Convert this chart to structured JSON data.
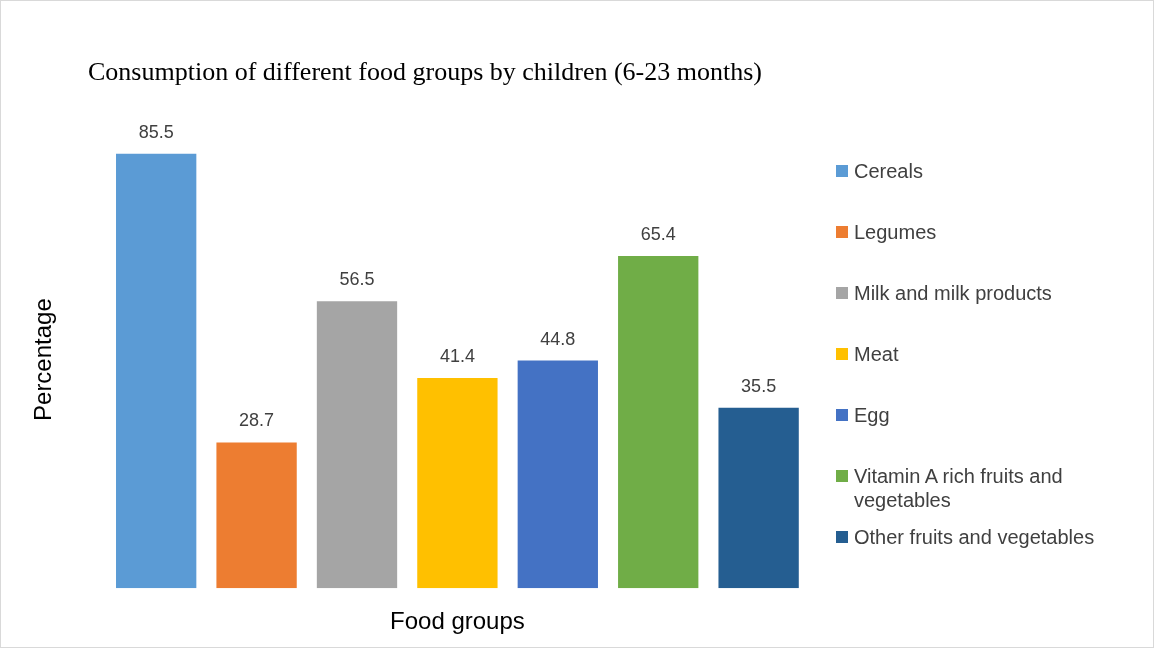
{
  "chart_data": {
    "type": "bar",
    "title": "Consumption of different food groups by children (6-23 months)",
    "xlabel": "Food groups",
    "ylabel": "Percentage",
    "categories": [
      null
    ],
    "series": [
      {
        "name": "Cereals",
        "color": "#5b9bd5",
        "values": [
          85.5
        ]
      },
      {
        "name": "Legumes",
        "color": "#ed7d31",
        "values": [
          28.7
        ]
      },
      {
        "name": "Milk and milk products",
        "color": "#a5a5a5",
        "values": [
          56.5
        ]
      },
      {
        "name": "Meat",
        "color": "#ffc000",
        "values": [
          41.4
        ]
      },
      {
        "name": "Egg",
        "color": "#4472c4",
        "values": [
          44.8
        ]
      },
      {
        "name": "Vitamin A rich fruits and vegetables",
        "color": "#70ad47",
        "values": [
          65.4
        ]
      },
      {
        "name": "Other fruits and vegetables",
        "color": "#255e91",
        "values": [
          35.5
        ]
      }
    ],
    "data_labels": true,
    "legend": "right",
    "grid": false
  }
}
